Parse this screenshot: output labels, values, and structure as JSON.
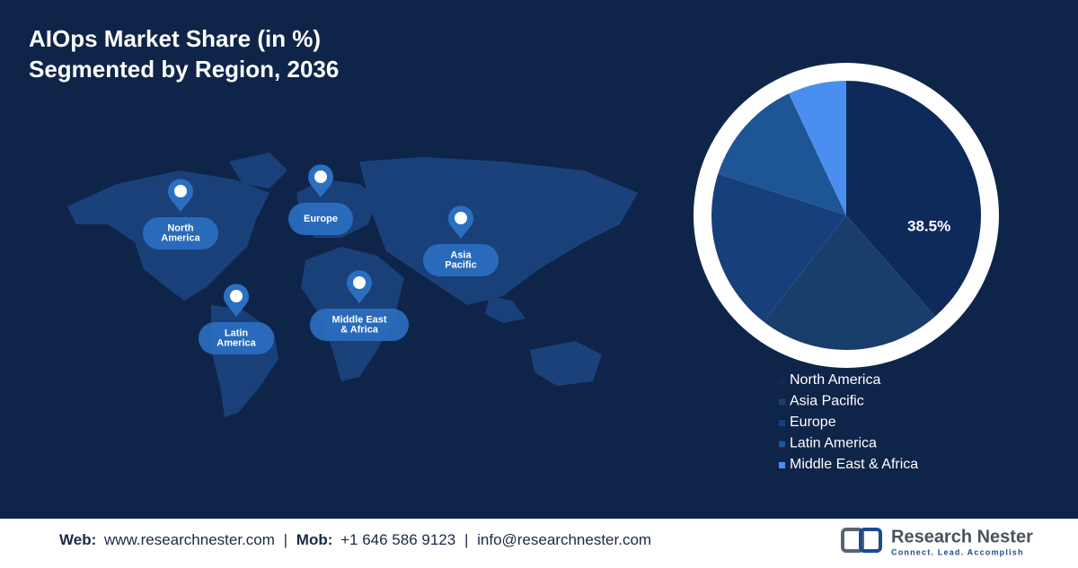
{
  "chart_data": {
    "type": "pie",
    "title_lines": [
      "AIOps Market Share (in %)",
      "Segmented by Region, 2036"
    ],
    "categories": [
      "North America",
      "Asia Pacific",
      "Europe",
      "Latin America",
      "Middle East & Africa"
    ],
    "values": [
      38.5,
      22,
      19.5,
      13,
      7
    ],
    "value_labels": [
      "38.5%",
      null,
      null,
      null,
      null
    ],
    "colors": [
      "#0e2a5a",
      "#1a3e6c",
      "#173f7c",
      "#1e5594",
      "#4a8ff0"
    ],
    "map_pins": [
      [
        "North",
        "America"
      ],
      [
        "Europe"
      ],
      [
        "Asia",
        "Pacific"
      ],
      [
        "Latin",
        "America"
      ],
      [
        "Middle East",
        "& Africa"
      ]
    ]
  },
  "footer": {
    "web_label": "Web:",
    "web": "www.researchnester.com",
    "separator": "|",
    "mob_label": "Mob:",
    "mob": "+1 646 586 9123",
    "email": "info@researchnester.com"
  },
  "logo": {
    "name": "Research Nester",
    "tagline": "Connect. Lead. Accomplish"
  }
}
